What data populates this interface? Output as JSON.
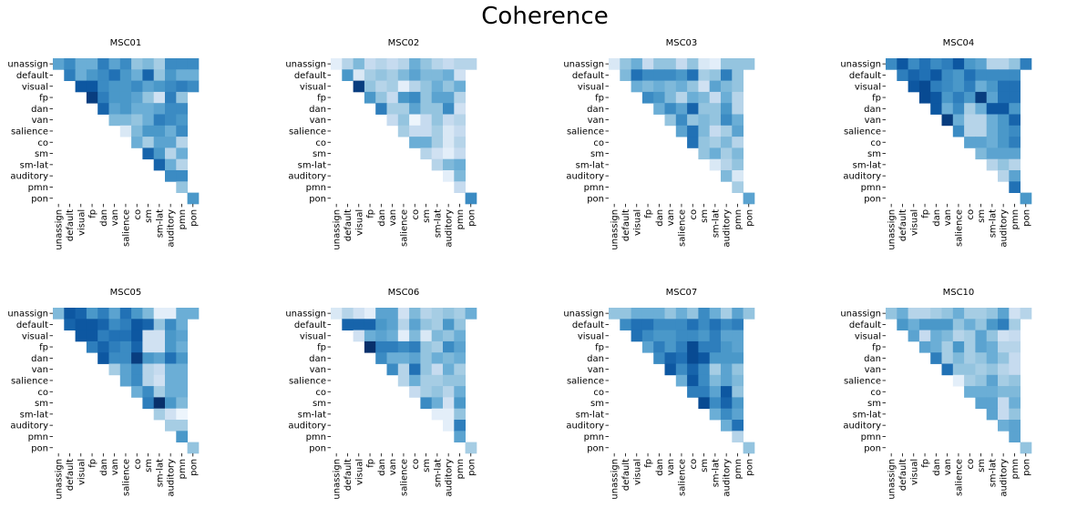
{
  "figure": {
    "title": "Coherence"
  },
  "chart_data": {
    "type": "heatmap",
    "title": "Coherence",
    "mask": "upper-triangle",
    "colormap": "Blues",
    "value_range": [
      0,
      1
    ],
    "colorbar": false,
    "labels": [
      "unassign",
      "default",
      "visual",
      "fp",
      "dan",
      "van",
      "salience",
      "co",
      "sm",
      "sm-lat",
      "auditory",
      "pmn",
      "pon"
    ],
    "panels": [
      {
        "title": "MSC01",
        "values": [
          [
            0.55,
            0.65,
            0.5,
            0.5,
            0.7,
            0.55,
            0.65,
            0.4,
            0.45,
            0.35,
            0.65,
            0.65,
            0.65
          ],
          [
            0.7,
            0.5,
            0.6,
            0.65,
            0.75,
            0.6,
            0.5,
            0.8,
            0.4,
            0.6,
            0.5,
            0.5
          ],
          [
            0.85,
            0.85,
            0.65,
            0.6,
            0.6,
            0.65,
            0.55,
            0.6,
            0.65,
            0.7,
            0.65
          ],
          [
            0.95,
            0.7,
            0.6,
            0.6,
            0.55,
            0.4,
            0.2,
            0.7,
            0.4
          ],
          [
            0.8,
            0.55,
            0.6,
            0.5,
            0.5,
            0.55,
            0.65,
            0.65
          ],
          [
            0.45,
            0.45,
            0.4,
            0.5,
            0.7,
            0.65,
            0.6
          ],
          [
            0.15,
            0.45,
            0.6,
            0.6,
            0.5,
            0.65
          ],
          [
            0.5,
            0.35,
            0.55,
            0.55,
            0.3
          ],
          [
            0.8,
            0.6,
            0.3,
            0.5
          ],
          [
            0.8,
            0.5,
            0.3
          ],
          [
            0.65,
            0.65
          ],
          [
            0.4
          ],
          [
            0.6
          ]
        ]
      },
      {
        "title": "MSC02",
        "values": [
          [
            0.1,
            0.3,
            0.45,
            0.25,
            0.3,
            0.25,
            0.3,
            0.5,
            0.4,
            0.3,
            0.25,
            0.3,
            0.3
          ],
          [
            0.6,
            0.15,
            0.35,
            0.4,
            0.35,
            0.45,
            0.55,
            0.45,
            0.45,
            0.5,
            0.2
          ],
          [
            0.95,
            0.4,
            0.3,
            0.35,
            0.1,
            0.3,
            0.4,
            0.5,
            0.4,
            0.5
          ],
          [
            0.6,
            0.4,
            0.25,
            0.6,
            0.65,
            0.4,
            0.55,
            0.55,
            0.3
          ],
          [
            0.7,
            0.35,
            0.35,
            0.55,
            0.4,
            0.4,
            0.65,
            0.2
          ],
          [
            0.25,
            0.4,
            0.05,
            0.25,
            0.4,
            0.25,
            0.3
          ],
          [
            0.35,
            0.25,
            0.25,
            0.35,
            0.15,
            0.25
          ],
          [
            0.5,
            0.5,
            0.35,
            0.15,
            0.3
          ],
          [
            0.3,
            0.2,
            0.1,
            0.25
          ],
          [
            0.3,
            0.45,
            0.5
          ],
          [
            0.1,
            0.45
          ],
          [
            0.25
          ],
          [
            0.65
          ]
        ]
      },
      {
        "title": "MSC03",
        "values": [
          [
            0.15,
            0.4,
            0.5,
            0.25,
            0.4,
            0.4,
            0.25,
            0.4,
            0.15,
            0.1,
            0.4,
            0.4,
            0.4
          ],
          [
            0.45,
            0.75,
            0.65,
            0.65,
            0.65,
            0.6,
            0.75,
            0.35,
            0.4,
            0.7,
            0.4
          ],
          [
            0.5,
            0.45,
            0.5,
            0.45,
            0.5,
            0.4,
            0.2,
            0.55,
            0.45,
            0.4
          ],
          [
            0.65,
            0.6,
            0.45,
            0.3,
            0.5,
            0.45,
            0.25,
            0.5,
            0.3
          ],
          [
            0.5,
            0.65,
            0.55,
            0.8,
            0.4,
            0.4,
            0.6,
            0.3
          ],
          [
            0.4,
            0.65,
            0.4,
            0.45,
            0.4,
            0.65,
            0.5
          ],
          [
            0.55,
            0.75,
            0.45,
            0.25,
            0.35,
            0.55
          ],
          [
            0.75,
            0.4,
            0.35,
            0.45,
            0.3
          ],
          [
            0.4,
            0.5,
            0.35,
            0.45
          ],
          [
            0.15,
            0.3,
            0.4
          ],
          [
            0.45,
            0.15
          ],
          [
            0.35
          ],
          [
            0.55
          ]
        ]
      },
      {
        "title": "MSC04",
        "values": [
          [
            0.65,
            0.85,
            0.65,
            0.75,
            0.65,
            0.7,
            0.85,
            0.6,
            0.55,
            0.3,
            0.3,
            0.4,
            0.7
          ],
          [
            0.7,
            0.8,
            0.75,
            0.85,
            0.65,
            0.6,
            0.75,
            0.65,
            0.65,
            0.65,
            0.65
          ],
          [
            0.85,
            0.9,
            0.7,
            0.65,
            0.6,
            0.7,
            0.5,
            0.6,
            0.75,
            0.75
          ],
          [
            0.9,
            0.85,
            0.6,
            0.7,
            0.6,
            0.95,
            0.55,
            0.75,
            0.75
          ],
          [
            0.85,
            0.5,
            0.65,
            0.35,
            0.5,
            0.85,
            0.85,
            0.6
          ],
          [
            0.95,
            0.5,
            0.3,
            0.3,
            0.5,
            0.6,
            0.8
          ],
          [
            0.65,
            0.3,
            0.3,
            0.5,
            0.6,
            0.65
          ],
          [
            0.55,
            0.55,
            0.5,
            0.6,
            0.7
          ],
          [
            0.45,
            0.55,
            0.55,
            0.55
          ],
          [
            0.3,
            0.4,
            0.3
          ],
          [
            0.3,
            0.55
          ],
          [
            0.75
          ],
          [
            0.6
          ]
        ]
      },
      {
        "title": "MSC05",
        "values": [
          [
            0.45,
            0.85,
            0.8,
            0.6,
            0.7,
            0.55,
            0.75,
            0.6,
            0.45,
            0.1,
            0.1,
            0.5,
            0.5
          ],
          [
            0.8,
            0.85,
            0.85,
            0.8,
            0.65,
            0.7,
            0.85,
            0.8,
            0.4,
            0.65,
            0.5
          ],
          [
            0.85,
            0.85,
            0.7,
            0.75,
            0.75,
            0.85,
            0.2,
            0.2,
            0.6,
            0.55
          ],
          [
            0.7,
            0.8,
            0.7,
            0.65,
            0.8,
            0.2,
            0.2,
            0.6,
            0.5
          ],
          [
            0.85,
            0.65,
            0.65,
            0.95,
            0.6,
            0.55,
            0.75,
            0.6
          ],
          [
            0.35,
            0.55,
            0.65,
            0.3,
            0.25,
            0.5,
            0.5
          ],
          [
            0.55,
            0.65,
            0.3,
            0.2,
            0.5,
            0.5
          ],
          [
            0.5,
            0.65,
            0.35,
            0.5,
            0.5
          ],
          [
            0.7,
            1.0,
            0.6,
            0.45
          ],
          [
            0.35,
            0.2,
            0.05
          ],
          [
            0.35,
            0.35
          ],
          [
            0.6
          ],
          [
            0.4
          ]
        ]
      },
      {
        "title": "MSC06",
        "values": [
          [
            0.15,
            0.3,
            0.2,
            0.1,
            0.55,
            0.55,
            0.2,
            0.45,
            0.3,
            0.35,
            0.4,
            0.35,
            0.5
          ],
          [
            0.8,
            0.8,
            0.8,
            0.6,
            0.55,
            0.3,
            0.55,
            0.4,
            0.35,
            0.6,
            0.4
          ],
          [
            0.2,
            0.5,
            0.55,
            0.5,
            0.1,
            0.45,
            0.15,
            0.45,
            0.4,
            0.5
          ],
          [
            1.0,
            0.7,
            0.7,
            0.65,
            0.7,
            0.4,
            0.35,
            0.65,
            0.55
          ],
          [
            0.65,
            0.5,
            0.5,
            0.55,
            0.4,
            0.5,
            0.45,
            0.5
          ],
          [
            0.65,
            0.3,
            0.75,
            0.4,
            0.25,
            0.5,
            0.35
          ],
          [
            0.3,
            0.5,
            0.35,
            0.35,
            0.4,
            0.4
          ],
          [
            0.25,
            0.35,
            0.4,
            0.3,
            0.5
          ],
          [
            0.65,
            0.5,
            0.2,
            0.6
          ],
          [
            0.1,
            0.1,
            0.4
          ],
          [
            0.1,
            0.7
          ],
          [
            0.55
          ],
          [
            0.35
          ]
        ]
      },
      {
        "title": "MSC07",
        "values": [
          [
            0.4,
            0.4,
            0.5,
            0.5,
            0.5,
            0.4,
            0.5,
            0.4,
            0.65,
            0.5,
            0.35,
            0.55,
            0.4
          ],
          [
            0.65,
            0.75,
            0.75,
            0.65,
            0.65,
            0.65,
            0.75,
            0.65,
            0.75,
            0.65,
            0.7
          ],
          [
            0.75,
            0.65,
            0.6,
            0.6,
            0.65,
            0.65,
            0.6,
            0.7,
            0.55,
            0.55
          ],
          [
            0.55,
            0.7,
            0.6,
            0.7,
            0.9,
            0.7,
            0.7,
            0.6,
            0.55
          ],
          [
            0.65,
            0.8,
            0.75,
            0.9,
            0.85,
            0.6,
            0.6,
            0.6
          ],
          [
            0.85,
            0.65,
            0.8,
            0.65,
            0.35,
            0.55,
            0.4
          ],
          [
            0.5,
            0.85,
            0.65,
            0.45,
            0.55,
            0.45
          ],
          [
            0.7,
            0.7,
            0.55,
            0.85,
            0.4
          ],
          [
            0.9,
            0.65,
            0.8,
            0.6
          ],
          [
            0.5,
            0.65,
            0.55
          ],
          [
            0.5,
            0.75
          ],
          [
            0.3
          ],
          [
            0.4
          ]
        ]
      },
      {
        "title": "MSC10",
        "values": [
          [
            0.4,
            0.5,
            0.3,
            0.3,
            0.35,
            0.4,
            0.5,
            0.35,
            0.35,
            0.4,
            0.55,
            0.2,
            0.3
          ],
          [
            0.6,
            0.5,
            0.6,
            0.6,
            0.6,
            0.4,
            0.5,
            0.4,
            0.6,
            0.7,
            0.35
          ],
          [
            0.55,
            0.25,
            0.5,
            0.45,
            0.3,
            0.35,
            0.55,
            0.4,
            0.2,
            0.25
          ],
          [
            0.55,
            0.5,
            0.35,
            0.6,
            0.35,
            0.55,
            0.5,
            0.3,
            0.3
          ],
          [
            0.7,
            0.35,
            0.45,
            0.35,
            0.4,
            0.5,
            0.4,
            0.25
          ],
          [
            0.75,
            0.4,
            0.4,
            0.35,
            0.4,
            0.3,
            0.25
          ],
          [
            0.1,
            0.35,
            0.4,
            0.55,
            0.35,
            0.4
          ],
          [
            0.5,
            0.5,
            0.5,
            0.45,
            0.45
          ],
          [
            0.55,
            0.55,
            0.25,
            0.5
          ],
          [
            0.55,
            0.25,
            0.4
          ],
          [
            0.5,
            0.55
          ],
          [
            0.55
          ],
          [
            0.4
          ]
        ]
      }
    ]
  }
}
